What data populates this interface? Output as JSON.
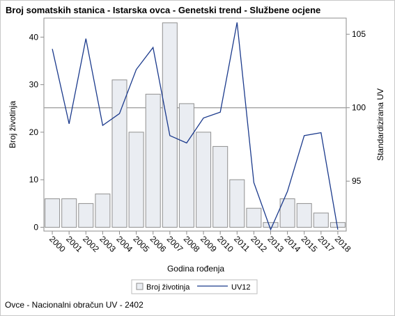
{
  "title": "Broj somatskih stanica - Istarska ovca - Genetski trend - Službene ocjene",
  "footnote": "Ovce - Nacionalni obračun UV - 2402",
  "colors": {
    "bar_fill": "#eaedf2",
    "bar_stroke": "#8f8f8f",
    "line": "#1b3a8c",
    "reference_line": "#a8a8a8",
    "axis": "#8c8c8c"
  },
  "chart_data": {
    "type": "bar",
    "categories": [
      "2000",
      "2001",
      "2002",
      "2003",
      "2004",
      "2005",
      "2006",
      "2007",
      "2008",
      "2009",
      "2010",
      "2011",
      "2012",
      "2013",
      "2014",
      "2015",
      "2017",
      "2018"
    ],
    "series": [
      {
        "name": "Broj životinja",
        "type": "bar",
        "axis": "left",
        "values": [
          6,
          6,
          5,
          7,
          31,
          20,
          28,
          43,
          26,
          20,
          17,
          10,
          4,
          1,
          6,
          5,
          3,
          1
        ]
      },
      {
        "name": "UV12",
        "type": "line",
        "axis": "right",
        "values": [
          104.0,
          98.9,
          104.7,
          98.8,
          99.6,
          102.6,
          104.1,
          98.1,
          97.6,
          99.3,
          99.7,
          105.8,
          94.9,
          91.7,
          94.3,
          98.1,
          98.3,
          91.7
        ]
      }
    ],
    "xlabel": "Godina rođenja",
    "ylabel": "Broj životinja",
    "y2label": "Standardizirana UV",
    "ylim": [
      -0.8,
      44
    ],
    "y2lim": [
      91.6,
      106.1
    ],
    "yticks": [
      0,
      10,
      20,
      30,
      40
    ],
    "y2ticks": [
      95,
      100,
      105
    ],
    "reference_line": 100,
    "legend": [
      "Broj životinja",
      "UV12"
    ],
    "legend_position": "bottom"
  }
}
